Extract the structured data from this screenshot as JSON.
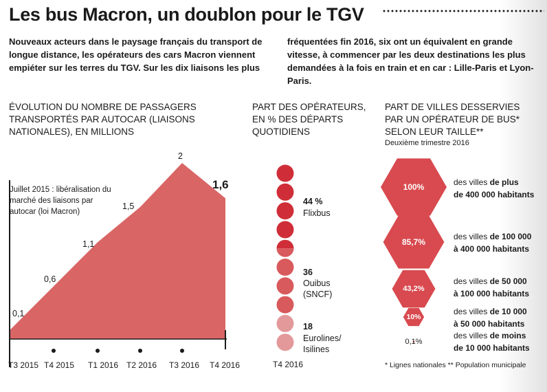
{
  "title": "Les bus Macron, un doublon pour le TGV",
  "intro": {
    "col1": "Nouveaux acteurs dans le paysage français du transport de longue distance, les opérateurs des cars Macron viennent empiéter sur les terres du TGV. Sur les dix liaisons les plus",
    "col2": "fréquentées fin 2016, six ont un équivalent en grande vitesse, à commencer par les deux destinations les plus demandées à la fois en train et en car : Lille-Paris et Lyon-Paris."
  },
  "chart_data": [
    {
      "type": "area",
      "title": "ÉVOLUTION DU NOMBRE DE PASSAGERS TRANSPORTÉS PAR AUTOCAR (LIAISONS NATIONALES), EN MILLIONS",
      "categories": [
        "T3 2015",
        "T4 2015",
        "T1 2016",
        "T2 2016",
        "T3 2016",
        "T4 2016"
      ],
      "values": [
        0.1,
        0.6,
        1.1,
        1.5,
        2,
        1.6
      ],
      "value_labels": [
        "0,1",
        "0,6",
        "1,1",
        "1,5",
        "2",
        "1,6"
      ],
      "ylim": [
        0,
        2.2
      ],
      "annotation": "Juillet 2015 : libéralisation du marché des liaisons par autocar (loi Macron)",
      "color": "#d96565"
    },
    {
      "type": "pictogram",
      "title": "PART DES OPÉRATEURS, EN % DES DÉPARTS QUOTIDIENS",
      "period": "T4 2016",
      "series": [
        {
          "name": "Flixbus",
          "value": 44,
          "label": "44 %",
          "color": "#cf2e38"
        },
        {
          "name": "Ouibus (SNCF)",
          "value": 36,
          "label": "36",
          "color": "#d85a5c"
        },
        {
          "name": "Eurolines/ Isilines",
          "value": 18,
          "label": "18",
          "color": "#e3999a"
        }
      ]
    },
    {
      "type": "hexagon",
      "title": "PART DE VILLES DESSERVIES PAR UN OPÉRATEUR DE BUS* SELON LEUR TAILLE**",
      "subtitle": "Deuxième trimestre 2016",
      "categories": [
        "des villes de plus de 400 000 habitants",
        "des villes de 100 000 à 400 000 habitants",
        "des villes de 50 000 à 100 000 habitants",
        "des villes de 10 000 à 50 000 habitants",
        "des villes de moins de 10 000 habitants"
      ],
      "values": [
        100,
        85.7,
        43.2,
        10,
        0.1
      ],
      "value_labels": [
        "100%",
        "85,7%",
        "43,2%",
        "10%",
        "0,1%"
      ],
      "color": "#d84a4f"
    }
  ],
  "labels": {
    "flixbus_pct": "44 %",
    "flixbus_name": "Flixbus",
    "ouibus_pct": "36",
    "ouibus_name1": "Ouibus",
    "ouibus_name2": "(SNCF)",
    "euro_pct": "18",
    "euro_name1": "Eurolines/",
    "euro_name2": "Isilines",
    "hex_row1_a": "des villes ",
    "hex_row1_b": "de plus",
    "hex_row1_c": "de 400 000 habitants",
    "hex_row2_a": "des villes ",
    "hex_row2_b": "de 100 000",
    "hex_row2_c": "à 400 000 habitants",
    "hex_row3_a": "des villes ",
    "hex_row3_b": "de 50 000",
    "hex_row3_c": "à 100 000 habitants",
    "hex_row4_a": "des villes ",
    "hex_row4_b": "de 10 000",
    "hex_row4_c": "à 50 000 habitants",
    "hex_row5_a": "des villes ",
    "hex_row5_b": "de moins",
    "hex_row5_c": "de 10 000 habitants"
  },
  "footnote": "* Lignes nationales ** Population municipale"
}
